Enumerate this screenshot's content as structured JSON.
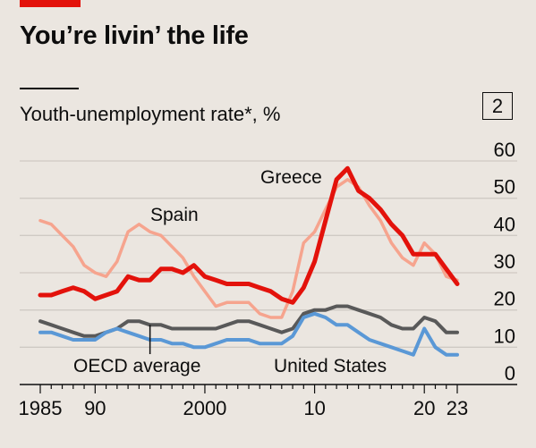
{
  "header": {
    "title": "You’re livin’ the life",
    "subtitle": "Youth-unemployment rate*, %",
    "chart_number": "2"
  },
  "colors": {
    "background": "#ebe6e0",
    "brand_red": "#e3120b",
    "greece": "#e3120b",
    "spain": "#f6a48e",
    "oecd": "#595959",
    "us": "#5a98d6",
    "grid": "#cfcac4"
  },
  "chart_data": {
    "type": "line",
    "title": "You’re livin’ the life",
    "ylabel": "Youth-unemployment rate*, %",
    "ylim": [
      0,
      60
    ],
    "xlim": [
      1985,
      2023
    ],
    "y_ticks": [
      0,
      10,
      20,
      30,
      40,
      50,
      60
    ],
    "y_tick_labels": [
      "0",
      "10",
      "20",
      "30",
      "40",
      "50",
      "60"
    ],
    "x_ticks": [
      1985,
      1990,
      2000,
      2010,
      2020,
      2023
    ],
    "x_tick_labels": [
      "1985",
      "90",
      "2000",
      "10",
      "20",
      "23"
    ],
    "grid": true,
    "y_axis_side": "right",
    "series": [
      {
        "name": "Spain",
        "color": "#f6a48e",
        "stroke_width": 3.5,
        "x": [
          1985,
          1986,
          1987,
          1988,
          1989,
          1990,
          1991,
          1992,
          1993,
          1994,
          1995,
          1996,
          1997,
          1998,
          1999,
          2000,
          2001,
          2002,
          2003,
          2004,
          2005,
          2006,
          2007,
          2008,
          2009,
          2010,
          2011,
          2012,
          2013,
          2014,
          2015,
          2016,
          2017,
          2018,
          2019,
          2020,
          2021,
          2022,
          2023
        ],
        "values": [
          44,
          43,
          40,
          37,
          32,
          30,
          29,
          33,
          41,
          43,
          41,
          40,
          37,
          34,
          29,
          25,
          21,
          22,
          22,
          22,
          19,
          18,
          18,
          25,
          38,
          41,
          47,
          53,
          55,
          53,
          48,
          44,
          38,
          34,
          32,
          38,
          35,
          29,
          28
        ]
      },
      {
        "name": "Greece",
        "color": "#e3120b",
        "stroke_width": 5,
        "x": [
          1985,
          1986,
          1987,
          1988,
          1989,
          1990,
          1991,
          1992,
          1993,
          1994,
          1995,
          1996,
          1997,
          1998,
          1999,
          2000,
          2001,
          2002,
          2003,
          2004,
          2005,
          2006,
          2007,
          2008,
          2009,
          2010,
          2011,
          2012,
          2013,
          2014,
          2015,
          2016,
          2017,
          2018,
          2019,
          2020,
          2021,
          2022,
          2023
        ],
        "values": [
          24,
          24,
          25,
          26,
          25,
          23,
          24,
          25,
          29,
          28,
          28,
          31,
          31,
          30,
          32,
          29,
          28,
          27,
          27,
          27,
          26,
          25,
          23,
          22,
          26,
          33,
          44,
          55,
          58,
          52,
          50,
          47,
          43,
          40,
          35,
          35,
          35,
          31,
          27
        ]
      },
      {
        "name": "OECD average",
        "color": "#595959",
        "stroke_width": 4,
        "x": [
          1985,
          1986,
          1987,
          1988,
          1989,
          1990,
          1991,
          1992,
          1993,
          1994,
          1995,
          1996,
          1997,
          1998,
          1999,
          2000,
          2001,
          2002,
          2003,
          2004,
          2005,
          2006,
          2007,
          2008,
          2009,
          2010,
          2011,
          2012,
          2013,
          2014,
          2015,
          2016,
          2017,
          2018,
          2019,
          2020,
          2021,
          2022,
          2023
        ],
        "values": [
          17,
          16,
          15,
          14,
          13,
          13,
          14,
          15,
          17,
          17,
          16,
          16,
          15,
          15,
          15,
          15,
          15,
          16,
          17,
          17,
          16,
          15,
          14,
          15,
          19,
          20,
          20,
          21,
          21,
          20,
          19,
          18,
          16,
          15,
          15,
          18,
          17,
          14,
          14
        ]
      },
      {
        "name": "United States",
        "color": "#5a98d6",
        "stroke_width": 4,
        "x": [
          1985,
          1986,
          1987,
          1988,
          1989,
          1990,
          1991,
          1992,
          1993,
          1994,
          1995,
          1996,
          1997,
          1998,
          1999,
          2000,
          2001,
          2002,
          2003,
          2004,
          2005,
          2006,
          2007,
          2008,
          2009,
          2010,
          2011,
          2012,
          2013,
          2014,
          2015,
          2016,
          2017,
          2018,
          2019,
          2020,
          2021,
          2022,
          2023
        ],
        "values": [
          14,
          14,
          13,
          12,
          12,
          12,
          14,
          15,
          14,
          13,
          12,
          12,
          11,
          11,
          10,
          10,
          11,
          12,
          12,
          12,
          11,
          11,
          11,
          13,
          18,
          19,
          18,
          16,
          16,
          14,
          12,
          11,
          10,
          9,
          8,
          15,
          10,
          8,
          8
        ]
      }
    ],
    "annotations": [
      {
        "text": "Greece",
        "series": "Greece"
      },
      {
        "text": "Spain",
        "series": "Spain"
      },
      {
        "text": "OECD average",
        "series": "OECD average",
        "pointer_at": 1995
      },
      {
        "text": "United States",
        "series": "United States"
      }
    ]
  }
}
